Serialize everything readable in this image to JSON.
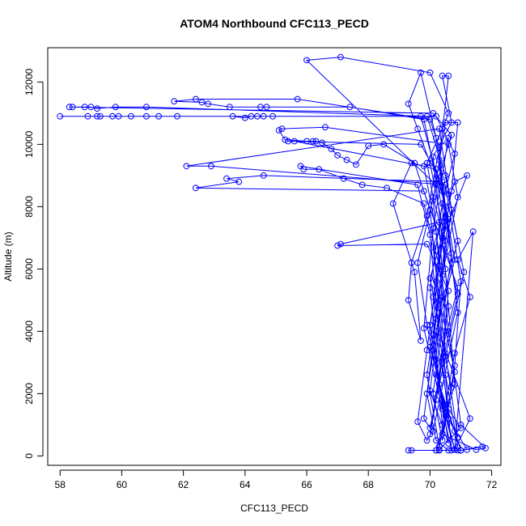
{
  "chart_data": {
    "type": "line",
    "title": "ATOM4 Northbound CFC113_PECD",
    "xlabel": "CFC113_PECD",
    "ylabel": "Altitude (m)",
    "xlim": [
      57.6,
      72.3
    ],
    "ylim": [
      -300,
      13100
    ],
    "xticks": [
      58,
      60,
      62,
      64,
      66,
      68,
      70,
      72
    ],
    "yticks": [
      0,
      2000,
      4000,
      6000,
      8000,
      10000,
      12000
    ],
    "series_color": "#0000ff",
    "marker": "open-circle",
    "series": [
      {
        "name": "CFC113_PECD",
        "points": [
          [
            69.4,
            180
          ],
          [
            69.3,
            180
          ],
          [
            70.2,
            180
          ],
          [
            70.3,
            180
          ],
          [
            70.9,
            180
          ],
          [
            71.0,
            180
          ],
          [
            71.7,
            300
          ],
          [
            71.2,
            200
          ],
          [
            70.6,
            1200
          ],
          [
            70.4,
            3000
          ],
          [
            70.9,
            5200
          ],
          [
            70.1,
            8300
          ],
          [
            69.9,
            9400
          ],
          [
            70.4,
            10500
          ],
          [
            70.6,
            11000
          ],
          [
            70.0,
            12300
          ],
          [
            67.1,
            12800
          ],
          [
            66.0,
            12700
          ],
          [
            70.4,
            8500
          ],
          [
            70.8,
            6300
          ],
          [
            70.2,
            4000
          ],
          [
            70.6,
            1500
          ],
          [
            71.0,
            900
          ],
          [
            70.3,
            200
          ],
          [
            70.2,
            180
          ],
          [
            70.8,
            2300
          ],
          [
            70.5,
            6000
          ],
          [
            70.1,
            9600
          ],
          [
            70.7,
            10700
          ],
          [
            70.4,
            12200
          ],
          [
            70.6,
            12200
          ],
          [
            70.3,
            9500
          ],
          [
            70.9,
            4600
          ],
          [
            70.1,
            800
          ],
          [
            69.9,
            500
          ],
          [
            69.6,
            1100
          ],
          [
            69.9,
            3400
          ],
          [
            70.5,
            7700
          ],
          [
            70.3,
            9900
          ],
          [
            70.0,
            10800
          ],
          [
            65.7,
            11450
          ],
          [
            62.4,
            11450
          ],
          [
            61.7,
            11380
          ],
          [
            62.6,
            11350
          ],
          [
            62.8,
            11300
          ],
          [
            63.5,
            11200
          ],
          [
            64.5,
            11200
          ],
          [
            64.7,
            11200
          ],
          [
            67.4,
            11200
          ],
          [
            69.8,
            10800
          ],
          [
            70.2,
            8900
          ],
          [
            70.5,
            7400
          ],
          [
            70.0,
            5700
          ],
          [
            70.4,
            3600
          ],
          [
            71.3,
            1200
          ],
          [
            70.8,
            200
          ],
          [
            70.5,
            1300
          ],
          [
            69.9,
            4200
          ],
          [
            69.6,
            6200
          ],
          [
            70.2,
            8700
          ],
          [
            70.7,
            10300
          ],
          [
            70.1,
            11000
          ],
          [
            58.3,
            11200
          ],
          [
            58.4,
            11200
          ],
          [
            58.8,
            11200
          ],
          [
            59.0,
            11200
          ],
          [
            59.2,
            11150
          ],
          [
            59.8,
            11200
          ],
          [
            60.8,
            11200
          ],
          [
            69.9,
            10900
          ],
          [
            70.5,
            9000
          ],
          [
            70.9,
            6900
          ],
          [
            70.3,
            4600
          ],
          [
            69.9,
            2000
          ],
          [
            70.2,
            500
          ],
          [
            70.6,
            180
          ],
          [
            71.0,
            180
          ],
          [
            70.3,
            2300
          ],
          [
            70.0,
            5400
          ],
          [
            70.4,
            8100
          ],
          [
            70.8,
            9700
          ],
          [
            70.2,
            10900
          ],
          [
            64.2,
            10900
          ],
          [
            64.0,
            10850
          ],
          [
            63.6,
            10900
          ],
          [
            61.8,
            10900
          ],
          [
            61.2,
            10900
          ],
          [
            60.8,
            10900
          ],
          [
            60.3,
            10900
          ],
          [
            59.9,
            10900
          ],
          [
            59.7,
            10900
          ],
          [
            59.3,
            10900
          ],
          [
            59.2,
            10900
          ],
          [
            58.9,
            10900
          ],
          [
            58.0,
            10900
          ],
          [
            64.4,
            10900
          ],
          [
            64.6,
            10900
          ],
          [
            64.9,
            10900
          ],
          [
            69.7,
            10900
          ],
          [
            70.5,
            8000
          ],
          [
            70.1,
            5100
          ],
          [
            70.7,
            2200
          ],
          [
            70.3,
            300
          ],
          [
            69.9,
            2600
          ],
          [
            70.4,
            5800
          ],
          [
            70.9,
            8300
          ],
          [
            70.6,
            10000
          ],
          [
            66.6,
            10550
          ],
          [
            65.2,
            10500
          ],
          [
            65.1,
            10450
          ],
          [
            65.3,
            10150
          ],
          [
            66.0,
            10100
          ],
          [
            66.2,
            10100
          ],
          [
            66.3,
            10100
          ],
          [
            66.5,
            10050
          ],
          [
            66.8,
            9850
          ],
          [
            67.0,
            9650
          ],
          [
            67.3,
            9500
          ],
          [
            67.6,
            9350
          ],
          [
            68.0,
            9950
          ],
          [
            68.5,
            10000
          ],
          [
            69.5,
            9400
          ],
          [
            70.0,
            7900
          ],
          [
            70.3,
            5000
          ],
          [
            70.8,
            2700
          ],
          [
            70.4,
            700
          ],
          [
            71.5,
            200
          ],
          [
            71.8,
            250
          ],
          [
            71.0,
            1000
          ],
          [
            70.6,
            4000
          ],
          [
            70.2,
            7200
          ],
          [
            69.8,
            9300
          ],
          [
            65.6,
            10100
          ],
          [
            65.4,
            10100
          ],
          [
            69.7,
            10000
          ],
          [
            70.6,
            8400
          ],
          [
            71.1,
            5900
          ],
          [
            70.5,
            3200
          ],
          [
            70.0,
            900
          ],
          [
            69.8,
            1200
          ],
          [
            70.2,
            4400
          ],
          [
            70.7,
            7900
          ],
          [
            70.3,
            10500
          ],
          [
            62.1,
            9300
          ],
          [
            62.9,
            9300
          ],
          [
            70.5,
            8700
          ],
          [
            71.0,
            5600
          ],
          [
            70.8,
            2900
          ],
          [
            70.4,
            500
          ],
          [
            70.1,
            2000
          ],
          [
            70.7,
            6500
          ],
          [
            70.4,
            8800
          ],
          [
            64.6,
            9000
          ],
          [
            63.4,
            8900
          ],
          [
            63.8,
            8800
          ],
          [
            62.4,
            8600
          ],
          [
            69.8,
            8500
          ],
          [
            70.9,
            5400
          ],
          [
            70.2,
            2600
          ],
          [
            70.8,
            800
          ],
          [
            70.9,
            300
          ],
          [
            70.3,
            3800
          ],
          [
            70.0,
            7100
          ],
          [
            69.6,
            8700
          ],
          [
            65.8,
            9300
          ],
          [
            65.9,
            9200
          ],
          [
            66.4,
            9200
          ],
          [
            67.2,
            8900
          ],
          [
            67.8,
            8700
          ],
          [
            68.6,
            8600
          ],
          [
            69.8,
            8100
          ],
          [
            70.3,
            6100
          ],
          [
            70.0,
            3500
          ],
          [
            70.6,
            1200
          ],
          [
            70.9,
            600
          ],
          [
            70.5,
            3300
          ],
          [
            70.1,
            6700
          ],
          [
            70.8,
            8800
          ],
          [
            71.2,
            9000
          ],
          [
            70.4,
            7000
          ],
          [
            70.6,
            4800
          ],
          [
            70.2,
            1800
          ],
          [
            70.0,
            700
          ],
          [
            70.5,
            4000
          ],
          [
            70.3,
            7500
          ],
          [
            67.1,
            6800
          ],
          [
            67.0,
            6750
          ],
          [
            69.9,
            6800
          ],
          [
            70.6,
            5300
          ],
          [
            70.3,
            2300
          ],
          [
            70.8,
            200
          ],
          [
            71.4,
            7200
          ],
          [
            70.9,
            6300
          ],
          [
            71.3,
            5100
          ],
          [
            70.8,
            3300
          ],
          [
            70.4,
            1000
          ],
          [
            70.1,
            3900
          ],
          [
            70.6,
            7600
          ],
          [
            70.2,
            9200
          ],
          [
            69.4,
            9400
          ],
          [
            68.8,
            8100
          ],
          [
            69.5,
            5900
          ],
          [
            69.7,
            3700
          ],
          [
            69.3,
            5000
          ],
          [
            69.4,
            6200
          ],
          [
            69.9,
            7700
          ],
          [
            70.3,
            9900
          ],
          [
            70.6,
            10200
          ],
          [
            70.1,
            7300
          ],
          [
            69.8,
            4100
          ],
          [
            70.4,
            1500
          ],
          [
            70.7,
            180
          ],
          [
            70.5,
            2600
          ],
          [
            70.2,
            5600
          ],
          [
            70.7,
            8500
          ],
          [
            70.9,
            10700
          ],
          [
            70.5,
            10700
          ],
          [
            70.1,
            8200
          ],
          [
            70.4,
            5100
          ],
          [
            70.0,
            2100
          ],
          [
            70.6,
            400
          ],
          [
            70.2,
            3100
          ],
          [
            70.5,
            6900
          ],
          [
            70.0,
            9400
          ],
          [
            69.6,
            10500
          ],
          [
            69.3,
            11300
          ],
          [
            69.7,
            12300
          ],
          [
            70.2,
            10200
          ],
          [
            70.5,
            7600
          ],
          [
            70.0,
            4200
          ],
          [
            70.4,
            1600
          ],
          [
            70.8,
            200
          ]
        ]
      }
    ]
  }
}
